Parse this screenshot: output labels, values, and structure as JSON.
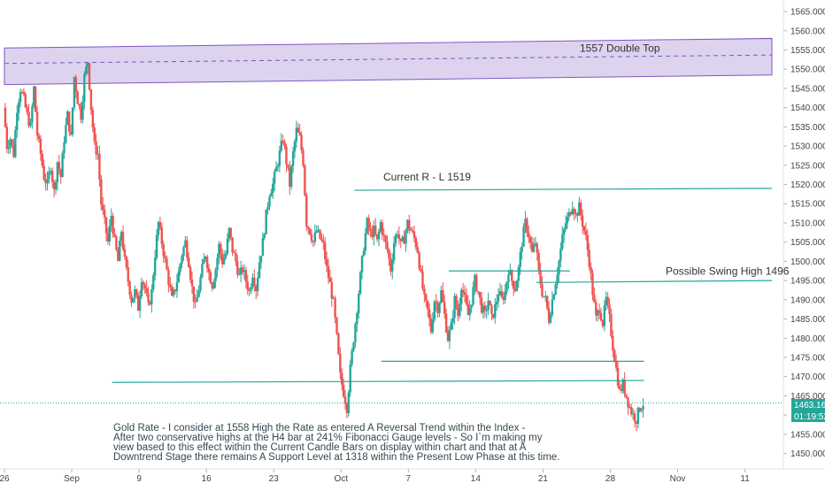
{
  "chart_data": {
    "type": "candlestick",
    "y_range": [
      1446,
      1568
    ],
    "y_ticks": [
      1450,
      1455,
      1460,
      1465,
      1470,
      1475,
      1480,
      1485,
      1490,
      1495,
      1500,
      1505,
      1510,
      1515,
      1520,
      1525,
      1530,
      1535,
      1540,
      1545,
      1550,
      1555,
      1560,
      1565
    ],
    "x_ticks": [
      {
        "label": "26",
        "x": 0
      },
      {
        "label": "Sep",
        "x": 20
      },
      {
        "label": "9",
        "x": 40
      },
      {
        "label": "16",
        "x": 60
      },
      {
        "label": "23",
        "x": 80
      },
      {
        "label": "Oct",
        "x": 100
      },
      {
        "label": "7",
        "x": 120
      },
      {
        "label": "14",
        "x": 140
      },
      {
        "label": "21",
        "x": 160
      },
      {
        "label": "28",
        "x": 180
      },
      {
        "label": "Nov",
        "x": 200
      },
      {
        "label": "11",
        "x": 220
      }
    ],
    "x_range": [
      0,
      228
    ],
    "anchors": [
      [
        0,
        1540
      ],
      [
        1,
        1530
      ],
      [
        2,
        1532
      ],
      [
        3,
        1528
      ],
      [
        4,
        1540
      ],
      [
        5,
        1545
      ],
      [
        6,
        1542
      ],
      [
        7,
        1538
      ],
      [
        8,
        1535
      ],
      [
        9,
        1545
      ],
      [
        10,
        1533
      ],
      [
        11,
        1528
      ],
      [
        12,
        1522
      ],
      [
        13,
        1520
      ],
      [
        14,
        1525
      ],
      [
        15,
        1518
      ],
      [
        16,
        1526
      ],
      [
        17,
        1522
      ],
      [
        18,
        1532
      ],
      [
        19,
        1538
      ],
      [
        20,
        1532
      ],
      [
        21,
        1548
      ],
      [
        22,
        1542
      ],
      [
        23,
        1538
      ],
      [
        24,
        1548
      ],
      [
        25,
        1552
      ],
      [
        26,
        1540
      ],
      [
        27,
        1530
      ],
      [
        28,
        1528
      ],
      [
        29,
        1515
      ],
      [
        30,
        1510
      ],
      [
        31,
        1505
      ],
      [
        32,
        1512
      ],
      [
        33,
        1505
      ],
      [
        34,
        1500
      ],
      [
        35,
        1508
      ],
      [
        36,
        1500
      ],
      [
        37,
        1495
      ],
      [
        38,
        1490
      ],
      [
        39,
        1492
      ],
      [
        40,
        1488
      ],
      [
        41,
        1496
      ],
      [
        42,
        1493
      ],
      [
        43,
        1488
      ],
      [
        44,
        1492
      ],
      [
        45,
        1502
      ],
      [
        46,
        1510
      ],
      [
        47,
        1505
      ],
      [
        48,
        1500
      ],
      [
        49,
        1495
      ],
      [
        50,
        1490
      ],
      [
        51,
        1493
      ],
      [
        52,
        1497
      ],
      [
        53,
        1502
      ],
      [
        54,
        1505
      ],
      [
        55,
        1500
      ],
      [
        56,
        1493
      ],
      [
        57,
        1488
      ],
      [
        58,
        1493
      ],
      [
        59,
        1498
      ],
      [
        60,
        1502
      ],
      [
        61,
        1497
      ],
      [
        62,
        1494
      ],
      [
        63,
        1498
      ],
      [
        64,
        1504
      ],
      [
        65,
        1500
      ],
      [
        66,
        1502
      ],
      [
        67,
        1508
      ],
      [
        68,
        1503
      ],
      [
        69,
        1500
      ],
      [
        70,
        1496
      ],
      [
        71,
        1498
      ],
      [
        72,
        1495
      ],
      [
        73,
        1492
      ],
      [
        74,
        1497
      ],
      [
        75,
        1493
      ],
      [
        76,
        1500
      ],
      [
        77,
        1505
      ],
      [
        78,
        1512
      ],
      [
        79,
        1518
      ],
      [
        80,
        1520
      ],
      [
        81,
        1524
      ],
      [
        82,
        1528
      ],
      [
        83,
        1532
      ],
      [
        84,
        1526
      ],
      [
        85,
        1520
      ],
      [
        86,
        1528
      ],
      [
        87,
        1534
      ],
      [
        88,
        1532
      ],
      [
        89,
        1526
      ],
      [
        90,
        1510
      ],
      [
        91,
        1508
      ],
      [
        92,
        1505
      ],
      [
        93,
        1508
      ],
      [
        94,
        1506
      ],
      [
        95,
        1504
      ],
      [
        96,
        1498
      ],
      [
        97,
        1494
      ],
      [
        98,
        1489
      ],
      [
        99,
        1480
      ],
      [
        100,
        1470
      ],
      [
        101,
        1466
      ],
      [
        102,
        1462
      ],
      [
        103,
        1472
      ],
      [
        104,
        1480
      ],
      [
        105,
        1488
      ],
      [
        106,
        1496
      ],
      [
        107,
        1504
      ],
      [
        108,
        1510
      ],
      [
        109,
        1507
      ],
      [
        110,
        1508
      ],
      [
        111,
        1505
      ],
      [
        112,
        1510
      ],
      [
        113,
        1506
      ],
      [
        114,
        1503
      ],
      [
        115,
        1498
      ],
      [
        116,
        1505
      ],
      [
        117,
        1508
      ],
      [
        118,
        1504
      ],
      [
        119,
        1506
      ],
      [
        120,
        1510
      ],
      [
        121,
        1508
      ],
      [
        122,
        1506
      ],
      [
        123,
        1503
      ],
      [
        124,
        1496
      ],
      [
        125,
        1490
      ],
      [
        126,
        1487
      ],
      [
        127,
        1482
      ],
      [
        128,
        1490
      ],
      [
        129,
        1488
      ],
      [
        130,
        1492
      ],
      [
        131,
        1486
      ],
      [
        132,
        1480
      ],
      [
        133,
        1483
      ],
      [
        134,
        1490
      ],
      [
        135,
        1486
      ],
      [
        136,
        1494
      ],
      [
        137,
        1490
      ],
      [
        138,
        1486
      ],
      [
        139,
        1490
      ],
      [
        140,
        1495
      ],
      [
        141,
        1492
      ],
      [
        142,
        1488
      ],
      [
        143,
        1486
      ],
      [
        144,
        1490
      ],
      [
        145,
        1485
      ],
      [
        146,
        1488
      ],
      [
        147,
        1492
      ],
      [
        148,
        1490
      ],
      [
        149,
        1492
      ],
      [
        150,
        1498
      ],
      [
        151,
        1495
      ],
      [
        152,
        1493
      ],
      [
        153,
        1498
      ],
      [
        154,
        1505
      ],
      [
        155,
        1510
      ],
      [
        156,
        1507
      ],
      [
        157,
        1502
      ],
      [
        158,
        1505
      ],
      [
        159,
        1497
      ],
      [
        160,
        1492
      ],
      [
        161,
        1490
      ],
      [
        162,
        1485
      ],
      [
        163,
        1490
      ],
      [
        164,
        1495
      ],
      [
        165,
        1500
      ],
      [
        166,
        1506
      ],
      [
        167,
        1510
      ],
      [
        168,
        1512
      ],
      [
        169,
        1515
      ],
      [
        170,
        1512
      ],
      [
        171,
        1514
      ],
      [
        172,
        1510
      ],
      [
        173,
        1506
      ],
      [
        174,
        1500
      ],
      [
        175,
        1492
      ],
      [
        176,
        1485
      ],
      [
        177,
        1488
      ],
      [
        178,
        1484
      ],
      [
        179,
        1490
      ],
      [
        180,
        1485
      ],
      [
        181,
        1478
      ],
      [
        182,
        1472
      ],
      [
        183,
        1466
      ],
      [
        184,
        1468
      ],
      [
        185,
        1465
      ],
      [
        186,
        1462
      ],
      [
        187,
        1460
      ],
      [
        188,
        1459
      ],
      [
        189,
        1462
      ],
      [
        190,
        1463
      ]
    ],
    "raw_series_note": null,
    "last_price": "1463.16",
    "countdown": "01:19:52",
    "zone": {
      "top": 1558,
      "bottom": 1547,
      "mid": 1553
    },
    "lines": [
      {
        "name": "resistance-1519",
        "x1": 104,
        "y1": 1518.5,
        "x2": 228,
        "y2": 1519
      },
      {
        "name": "swing-1496",
        "x1": 158,
        "y1": 1494.5,
        "x2": 228,
        "y2": 1495
      },
      {
        "name": "range-top",
        "x1": 132,
        "y1": 1497.5,
        "x2": 168,
        "y2": 1497.5
      },
      {
        "name": "range-bottom",
        "x1": 112,
        "y1": 1474,
        "x2": 190,
        "y2": 1474
      },
      {
        "name": "support",
        "x1": 32,
        "y1": 1468.5,
        "x2": 190,
        "y2": 1469
      }
    ],
    "labels": {
      "double_top": "1557 Double Top",
      "current_r": "Current R - L 1519",
      "swing_high": "Possible Swing High 1496"
    },
    "annotation_lines": [
      "Gold Rate - I consider at 1558 High the Rate as entered A Reversal Trend within the Index -",
      "After two conservative highs at the H4 bar at 241% Fibonacci Gauge levels - So I`m making my",
      "view based to this effect within the Current Candle Bars on display within chart and that at A",
      "Downtrend Stage there remains A Support Level at 1318 within the Present Low Phase at this time."
    ]
  },
  "colors": {
    "up": "#26a69a",
    "down": "#ef5350",
    "zone_fill": "#d1c4e9",
    "zone_border": "#7e57c2",
    "line": "#26a69a",
    "axis_text": "#444444",
    "label_bg": "#26a69a",
    "price_line": "#26a69a"
  }
}
